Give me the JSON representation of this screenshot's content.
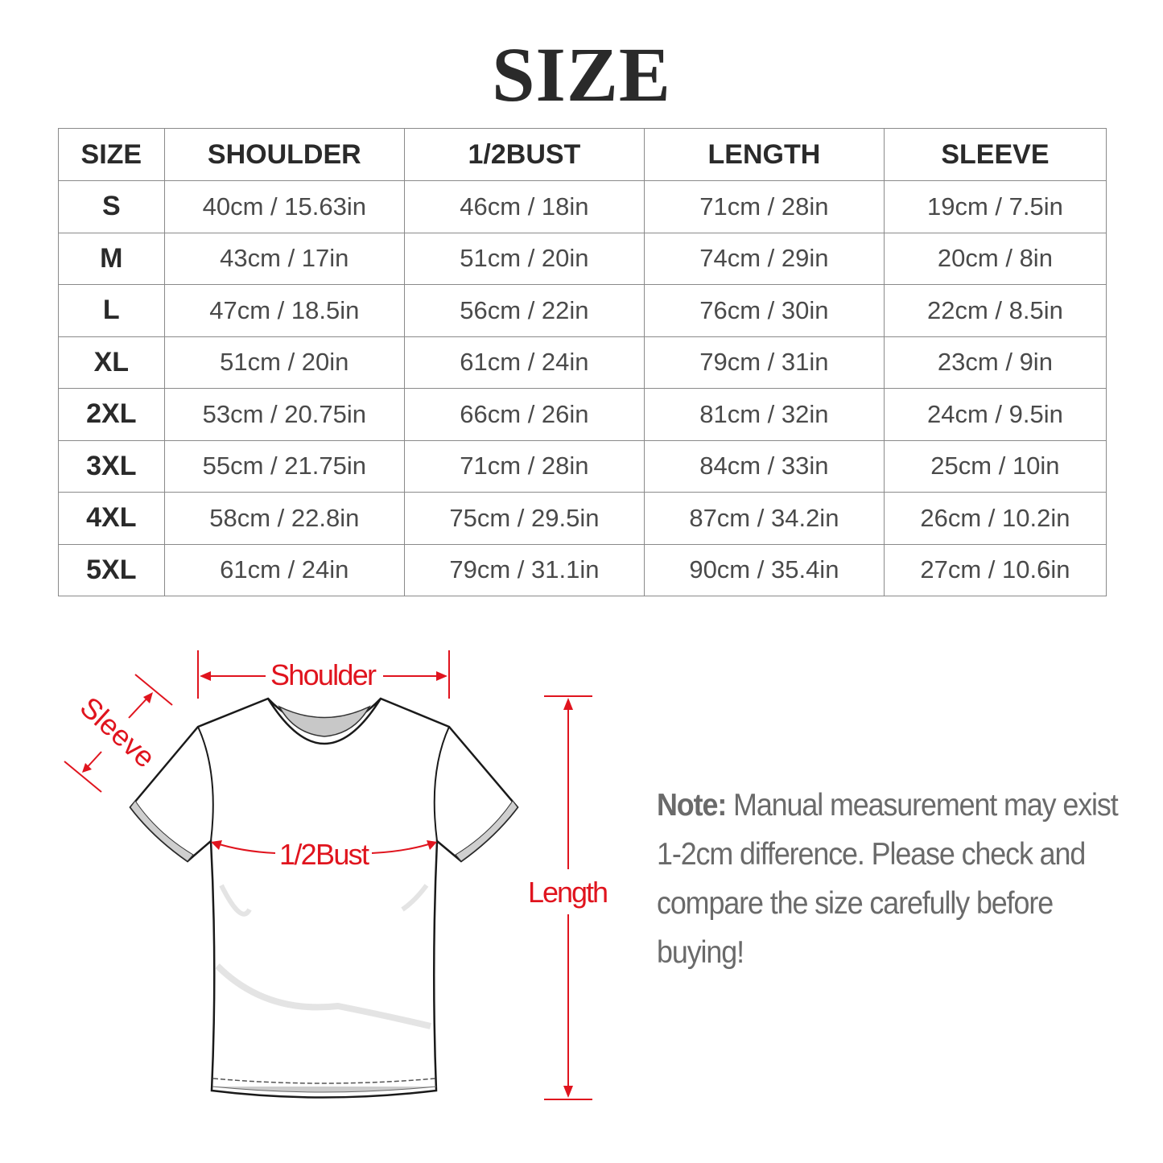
{
  "title": "SIZE",
  "table": {
    "headers": [
      "SIZE",
      "SHOULDER",
      "1/2BUST",
      "LENGTH",
      "SLEEVE"
    ],
    "rows": [
      [
        "S",
        "40cm / 15.63in",
        "46cm / 18in",
        "71cm / 28in",
        "19cm / 7.5in"
      ],
      [
        "M",
        "43cm / 17in",
        "51cm / 20in",
        "74cm / 29in",
        "20cm / 8in"
      ],
      [
        "L",
        "47cm / 18.5in",
        "56cm / 22in",
        "76cm / 30in",
        "22cm / 8.5in"
      ],
      [
        "XL",
        "51cm / 20in",
        "61cm / 24in",
        "79cm / 31in",
        "23cm / 9in"
      ],
      [
        "2XL",
        "53cm / 20.75in",
        "66cm / 26in",
        "81cm / 32in",
        "24cm / 9.5in"
      ],
      [
        "3XL",
        "55cm / 21.75in",
        "71cm / 28in",
        "84cm / 33in",
        "25cm / 10in"
      ],
      [
        "4XL",
        "58cm / 22.8in",
        "75cm / 29.5in",
        "87cm / 34.2in",
        "26cm / 10.2in"
      ],
      [
        "5XL",
        "61cm / 24in",
        "79cm / 31.1in",
        "90cm / 35.4in",
        "27cm / 10.6in"
      ]
    ]
  },
  "diagram": {
    "shoulder_label": "Shoulder",
    "sleeve_label": "Sleeve",
    "bust_label": "1/2Bust",
    "length_label": "Length",
    "annotation_color": "#e0141e",
    "icon": "tshirt-outline"
  },
  "note": {
    "label": "Note:",
    "text": " Manual measurement may exist 1-2cm difference. Please check and compare the size carefully before buying!"
  }
}
